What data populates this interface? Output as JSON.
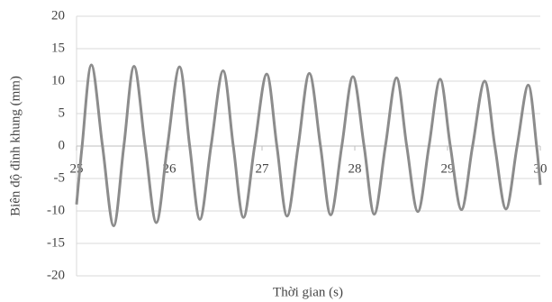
{
  "chart_data": {
    "type": "line",
    "x_label": "Thời gian (s)",
    "y_label": "Biên độ đỉnh khung (mm)",
    "xlim": [
      25,
      30
    ],
    "xticks": [
      25,
      26,
      27,
      28,
      29,
      30
    ],
    "ylim": [
      -20,
      20
    ],
    "yticks": [
      -20,
      -15,
      -10,
      -5,
      0,
      5,
      10,
      15,
      20
    ],
    "grid": true,
    "series": [
      {
        "color": "#8c8c8c",
        "x": [
          25.0,
          25.06,
          25.16,
          25.28,
          25.4,
          25.51,
          25.62,
          25.74,
          25.86,
          25.98,
          26.11,
          26.22,
          26.33,
          26.45,
          26.58,
          26.69,
          26.8,
          26.92,
          27.05,
          27.16,
          27.27,
          27.39,
          27.51,
          27.63,
          27.74,
          27.86,
          27.98,
          28.1,
          28.21,
          28.33,
          28.45,
          28.56,
          28.68,
          28.8,
          28.92,
          29.03,
          29.15,
          29.27,
          29.4,
          29.51,
          29.63,
          29.75,
          29.87,
          29.96,
          30.0
        ],
        "values": [
          -9,
          0,
          12.5,
          0,
          -12.3,
          0,
          12.3,
          0,
          -11.8,
          0,
          12.2,
          0,
          -11.3,
          0,
          11.6,
          0,
          -11.0,
          0,
          11.1,
          0,
          -10.8,
          0,
          11.2,
          0,
          -10.6,
          0,
          10.7,
          0,
          -10.5,
          0,
          10.5,
          0,
          -10.1,
          0,
          10.3,
          0,
          -9.8,
          0,
          10.0,
          0,
          -9.7,
          0,
          9.4,
          0,
          -6
        ]
      }
    ]
  }
}
